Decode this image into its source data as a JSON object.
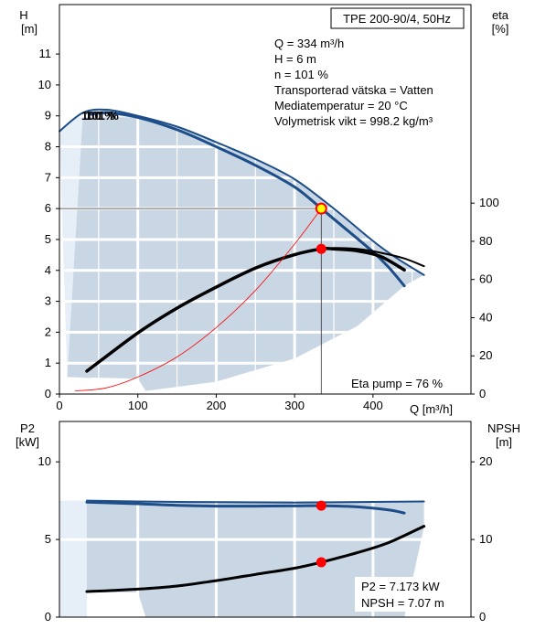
{
  "colors": {
    "area": "#c9d6e3",
    "area_light": "#e6eef7",
    "curve_blue": "#1d4e89",
    "curve_black": "#000000",
    "marker_red": "#ff0000",
    "marker_yellow": "#ffff00",
    "grid": "#ffffff",
    "system_curve": "#ff0000"
  },
  "chart_data": [
    {
      "type": "line",
      "title": "TPE 200-90/4, 50Hz",
      "xlabel": "Q [m³/h]",
      "ylabel_left": "H\n[m]",
      "ylabel_left_parts": [
        "H",
        "[m]"
      ],
      "ylabel_right_parts": [
        "eta",
        "[%]"
      ],
      "xlim": [
        0,
        525
      ],
      "ylim": [
        0,
        12.6
      ],
      "ylim_right": [
        0,
        204
      ],
      "x_ticks": [
        0,
        100,
        200,
        300,
        400
      ],
      "y_ticks": [
        0,
        1,
        2,
        3,
        4,
        5,
        6,
        7,
        8,
        9,
        10,
        11
      ],
      "y_ticks_right": [
        0,
        20,
        40,
        60,
        80,
        100
      ],
      "info_lines": [
        "Q = 334 m³/h",
        "H = 6 m",
        "n = 101 %",
        "Transporterad vätska = Vatten",
        "Mediatemperatur = 20 °C",
        "Volymetrisk vikt = 998.2 kg/m³"
      ],
      "speed_label": "101 %",
      "speed_label_behind": "100 %",
      "eta_label": "Eta pump = 76 %",
      "duty_point": {
        "x": 334,
        "y": 6
      },
      "eta_point": {
        "x": 334,
        "eta": 76
      },
      "series": [
        {
          "name": "H 101 %",
          "axis": "left",
          "color_key": "curve_blue",
          "width": 3,
          "x": [
            40,
            60,
            100,
            150,
            200,
            250,
            300,
            334,
            360,
            400,
            420,
            440
          ],
          "y": [
            9.05,
            9.1,
            8.95,
            8.55,
            8.0,
            7.4,
            6.7,
            6.0,
            5.45,
            4.6,
            4.1,
            3.5
          ]
        },
        {
          "name": "H max",
          "axis": "left",
          "color_key": "curve_blue",
          "width": 2,
          "x": [
            0,
            30,
            60,
            100,
            150,
            200,
            250,
            300,
            350,
            400,
            430,
            465
          ],
          "y": [
            8.5,
            9.1,
            9.2,
            9.0,
            8.65,
            8.15,
            7.6,
            6.95,
            6.0,
            4.95,
            4.4,
            3.85
          ]
        },
        {
          "name": "eta",
          "axis": "right",
          "color_key": "curve_black",
          "width": 3.5,
          "x": [
            35,
            100,
            150,
            200,
            250,
            300,
            334,
            350,
            380,
            410,
            440
          ],
          "y": [
            12,
            32,
            45,
            56,
            66,
            73,
            76,
            76,
            75,
            72,
            65
          ]
        },
        {
          "name": "eta max",
          "axis": "right",
          "color_key": "curve_black",
          "width": 2,
          "x": [
            334,
            350,
            380,
            410,
            440,
            465
          ],
          "y": [
            76,
            76.5,
            76,
            74,
            71,
            67
          ]
        },
        {
          "name": "system curve",
          "axis": "left",
          "color_key": "system_curve",
          "width": 0.8,
          "x": [
            20,
            60,
            100,
            150,
            200,
            250,
            300,
            334
          ],
          "y": [
            0.1,
            0.2,
            0.55,
            1.2,
            2.15,
            3.35,
            4.85,
            6.0
          ]
        }
      ]
    },
    {
      "type": "line",
      "xlabel": "",
      "ylabel_left_parts": [
        "P2",
        "[kW]"
      ],
      "ylabel_right_parts": [
        "NPSH",
        "[m]"
      ],
      "xlim": [
        0,
        525
      ],
      "ylim": [
        0,
        12.6
      ],
      "ylim_right": [
        0,
        25.2
      ],
      "y_ticks": [
        0,
        5,
        10
      ],
      "y_ticks_right": [
        0,
        10,
        20
      ],
      "info_lines": [
        "P2 = 7.173 kW",
        "NPSH = 7.07 m"
      ],
      "p2_point": {
        "x": 334,
        "y": 7.173
      },
      "npsh_point": {
        "x": 334,
        "npsh": 7.07
      },
      "series": [
        {
          "name": "P2 max",
          "axis": "left",
          "color_key": "curve_blue",
          "width": 2,
          "x": [
            35,
            100,
            200,
            300,
            400,
            465
          ],
          "y": [
            7.5,
            7.45,
            7.4,
            7.38,
            7.42,
            7.45
          ]
        },
        {
          "name": "P2",
          "axis": "left",
          "color_key": "curve_blue",
          "width": 3,
          "x": [
            35,
            100,
            150,
            200,
            250,
            300,
            334,
            380,
            420,
            440
          ],
          "y": [
            7.4,
            7.3,
            7.2,
            7.15,
            7.15,
            7.16,
            7.173,
            7.1,
            6.9,
            6.7
          ]
        },
        {
          "name": "NPSH",
          "axis": "right",
          "color_key": "curve_black",
          "width": 3,
          "x": [
            35,
            100,
            150,
            200,
            250,
            300,
            334,
            380,
            420,
            465
          ],
          "y": [
            3.3,
            3.6,
            4.0,
            4.7,
            5.5,
            6.3,
            7.07,
            8.3,
            9.6,
            11.7
          ]
        }
      ]
    }
  ]
}
